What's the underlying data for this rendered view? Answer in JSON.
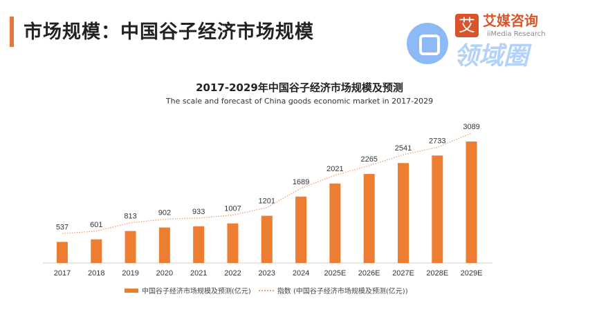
{
  "page_title": "市场规模：中国谷子经济市场规模",
  "brand": {
    "cn": "艾媒咨询",
    "en": "iiMedia Research",
    "logo_char": "艾"
  },
  "watermark": "领域圈",
  "chart_data": {
    "type": "bar",
    "title": "2017-2029年中国谷子经济市场规模及预测",
    "subtitle": "The scale and forecast of China goods economic market in 2017-2029",
    "categories": [
      "2017",
      "2018",
      "2019",
      "2020",
      "2021",
      "2022",
      "2023",
      "2024",
      "2025E",
      "2026E",
      "2027E",
      "2028E",
      "2029E"
    ],
    "series": [
      {
        "name": "中国谷子经济市场规模及预测(亿元)",
        "type": "bar",
        "color": "#ed7d31",
        "values": [
          537,
          601,
          813,
          902,
          933,
          1007,
          1201,
          1689,
          2021,
          2265,
          2541,
          2733,
          3089
        ]
      },
      {
        "name": "指数 (中国谷子经济市场规模及预测(亿元))",
        "type": "line",
        "color": "#f0a070",
        "values": [
          537,
          601,
          813,
          902,
          933,
          1007,
          1201,
          1689,
          2021,
          2265,
          2541,
          2733,
          3089
        ]
      }
    ],
    "ylim": [
      0,
      3089
    ],
    "grid": false,
    "legend": "bottom"
  }
}
